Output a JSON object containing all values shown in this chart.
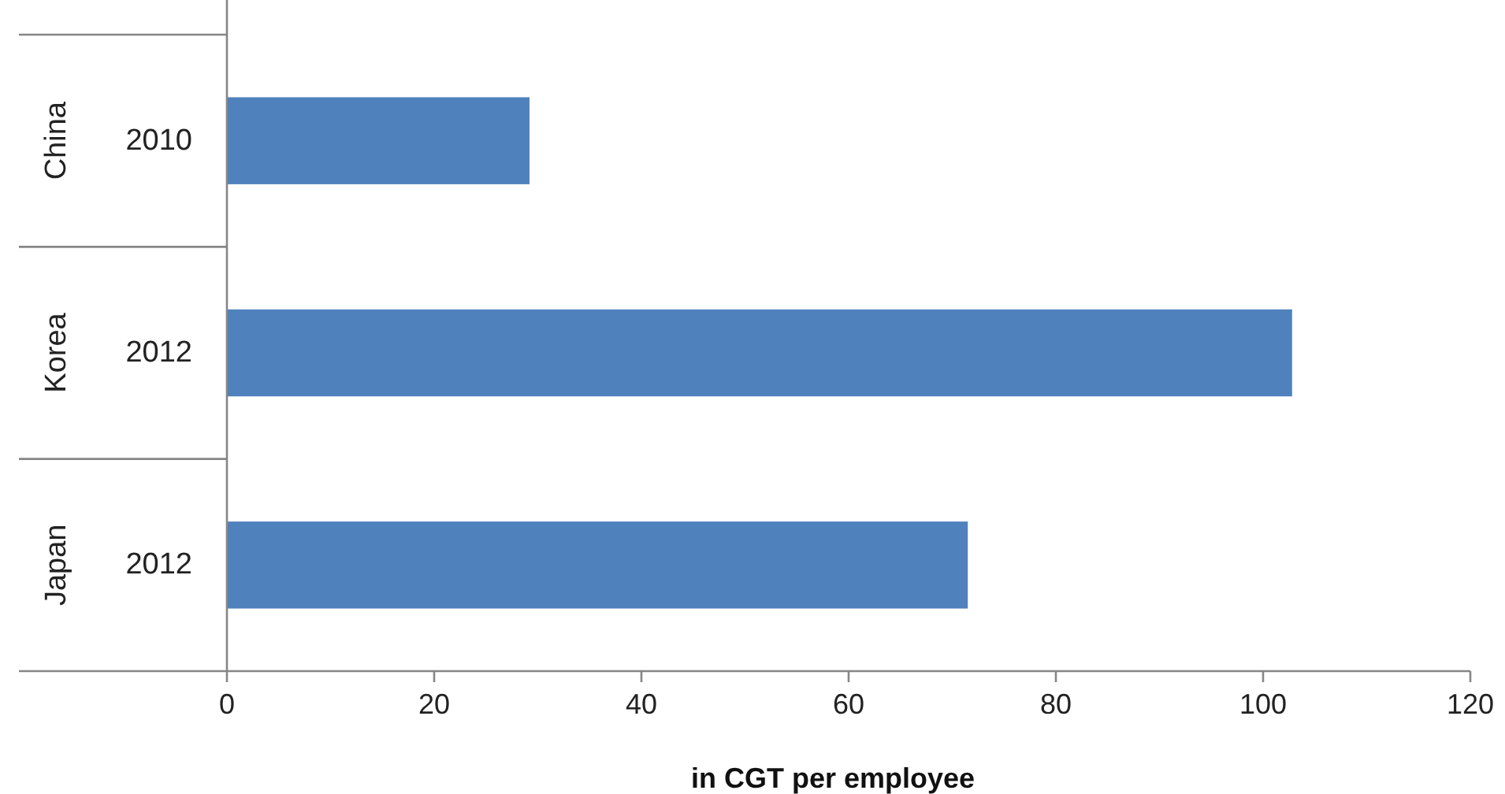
{
  "chart_data": {
    "type": "bar",
    "orientation": "horizontal",
    "categories": [
      "2010",
      "2012",
      "2012"
    ],
    "values": [
      29.2,
      102.8,
      71.5
    ],
    "color": "#4f81bd",
    "xlim": [
      0,
      120
    ],
    "xticks": [
      0,
      20,
      40,
      60,
      80,
      100,
      120
    ],
    "xlabel": "in CGT per employee",
    "annotations": [
      "China",
      "Korea",
      "Japan"
    ],
    "grid": false
  }
}
